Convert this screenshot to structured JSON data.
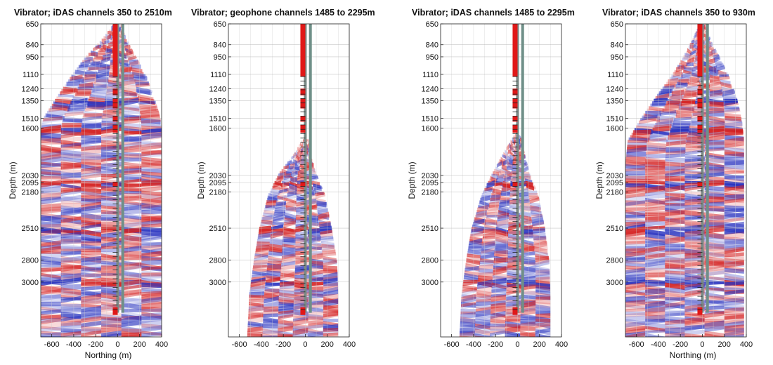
{
  "chart_data": [
    {
      "type": "heatmap",
      "title": "Vibrator; iDAS channels 350 to 2510m",
      "xlabel": "Northing (m)",
      "ylabel": "Depth (m)",
      "xlim": [
        -700,
        400
      ],
      "ylim": [
        650,
        3500
      ],
      "xticks": [
        -600,
        -400,
        -200,
        0,
        200,
        400
      ],
      "yticks": [
        650,
        840,
        950,
        1110,
        1240,
        1350,
        1510,
        1600,
        2030,
        2095,
        2180,
        2510,
        2800,
        3000
      ],
      "coverage": [
        [
          650,
          -40,
          40
        ],
        [
          700,
          -80,
          50
        ],
        [
          800,
          -160,
          90
        ],
        [
          950,
          -300,
          170
        ],
        [
          1110,
          -420,
          260
        ],
        [
          1300,
          -550,
          330
        ],
        [
          1500,
          -680,
          390
        ],
        [
          1600,
          -700,
          400
        ],
        [
          3500,
          -700,
          400
        ]
      ],
      "colors": {
        "positive": "#d42020",
        "negative": "#2a34c0"
      }
    },
    {
      "type": "heatmap",
      "title": "Vibrator; geophone channels  1485 to 2295m",
      "xlabel": "",
      "ylabel": "Depth (m)",
      "xlim": [
        -700,
        400
      ],
      "ylim": [
        650,
        3500
      ],
      "xticks": [
        -600,
        -400,
        -200,
        0,
        200,
        400
      ],
      "yticks": [
        650,
        840,
        950,
        1110,
        1240,
        1350,
        1510,
        1600,
        2030,
        2095,
        2180,
        2510,
        2800,
        3000
      ],
      "coverage": [
        [
          1700,
          -30,
          30
        ],
        [
          1850,
          -120,
          60
        ],
        [
          2000,
          -240,
          100
        ],
        [
          2200,
          -340,
          180
        ],
        [
          2500,
          -420,
          240
        ],
        [
          2800,
          -470,
          290
        ],
        [
          3100,
          -510,
          300
        ],
        [
          3500,
          -530,
          300
        ]
      ],
      "colors": {
        "positive": "#d42020",
        "negative": "#2a34c0"
      }
    },
    {
      "type": "heatmap",
      "title": "Vibrator; iDAS channels  1485 to 2295m",
      "xlabel": "",
      "ylabel": "Depth (m)",
      "xlim": [
        -700,
        400
      ],
      "ylim": [
        650,
        3500
      ],
      "xticks": [
        -600,
        -400,
        -200,
        0,
        200,
        400
      ],
      "yticks": [
        650,
        840,
        950,
        1110,
        1240,
        1350,
        1510,
        1600,
        2030,
        2095,
        2180,
        2510,
        2800,
        3000
      ],
      "coverage": [
        [
          1650,
          -30,
          30
        ],
        [
          1800,
          -120,
          60
        ],
        [
          2000,
          -230,
          110
        ],
        [
          2200,
          -330,
          190
        ],
        [
          2500,
          -420,
          250
        ],
        [
          2800,
          -470,
          290
        ],
        [
          3100,
          -510,
          300
        ],
        [
          3500,
          -530,
          300
        ]
      ],
      "colors": {
        "positive": "#d42020",
        "negative": "#2a34c0"
      }
    },
    {
      "type": "heatmap",
      "title": "Vibrator; iDAS channels 350 to 930m",
      "xlabel": "Northing (m)",
      "ylabel": "Depth (m)",
      "xlim": [
        -700,
        400
      ],
      "ylim": [
        650,
        3500
      ],
      "xticks": [
        -600,
        -400,
        -200,
        0,
        200,
        400
      ],
      "yticks": [
        650,
        840,
        950,
        1110,
        1240,
        1350,
        1510,
        1600,
        2030,
        2095,
        2180,
        2510,
        2800,
        3000
      ],
      "coverage": [
        [
          650,
          -30,
          30
        ],
        [
          800,
          -100,
          80
        ],
        [
          950,
          -180,
          160
        ],
        [
          1110,
          -280,
          240
        ],
        [
          1300,
          -420,
          310
        ],
        [
          1500,
          -560,
          360
        ],
        [
          1700,
          -680,
          380
        ],
        [
          1900,
          -700,
          380
        ],
        [
          3500,
          -700,
          380
        ]
      ],
      "colors": {
        "positive": "#d42020",
        "negative": "#2a34c0"
      }
    }
  ]
}
